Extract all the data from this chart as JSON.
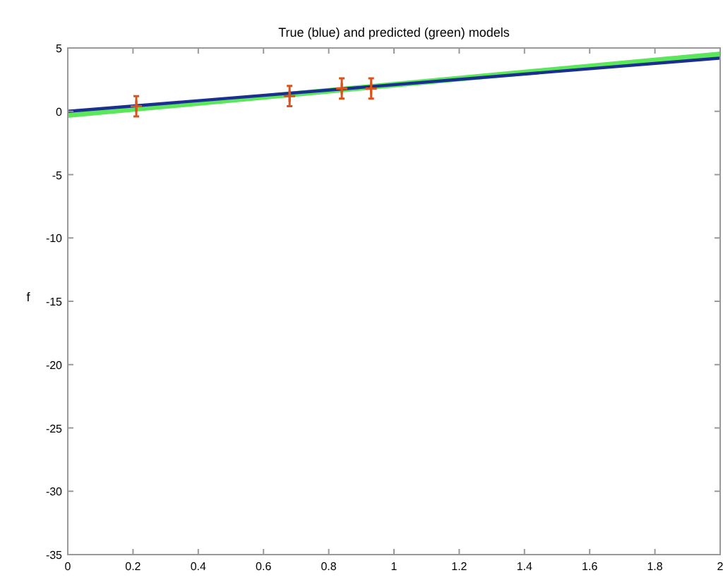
{
  "chart_data": {
    "type": "line",
    "title": "True (blue) and predicted (green) models",
    "ylabel": "f",
    "xlim": [
      0,
      2
    ],
    "ylim": [
      -35,
      5
    ],
    "xticks": [
      0,
      0.2,
      0.4,
      0.6,
      0.8,
      1,
      1.2,
      1.4,
      1.6,
      1.8,
      2
    ],
    "yticks": [
      -35,
      -30,
      -25,
      -20,
      -15,
      -10,
      -5,
      0,
      5
    ],
    "grid": false,
    "series": [
      {
        "color": "#5ce65c",
        "x": [
          0,
          2
        ],
        "values": [
          -0.3,
          4.5
        ]
      },
      {
        "color": "#1a2f8f",
        "x": [
          0,
          2
        ],
        "values": [
          0,
          4.2
        ]
      },
      {
        "type": "scatter",
        "color": "#d9531e",
        "marker": "cross",
        "x": [
          0.21,
          0.68,
          0.84,
          0.93
        ],
        "values": [
          0.4,
          1.2,
          1.8,
          1.8
        ],
        "errors": [
          0.8,
          0.8,
          0.8,
          0.8
        ]
      }
    ]
  }
}
